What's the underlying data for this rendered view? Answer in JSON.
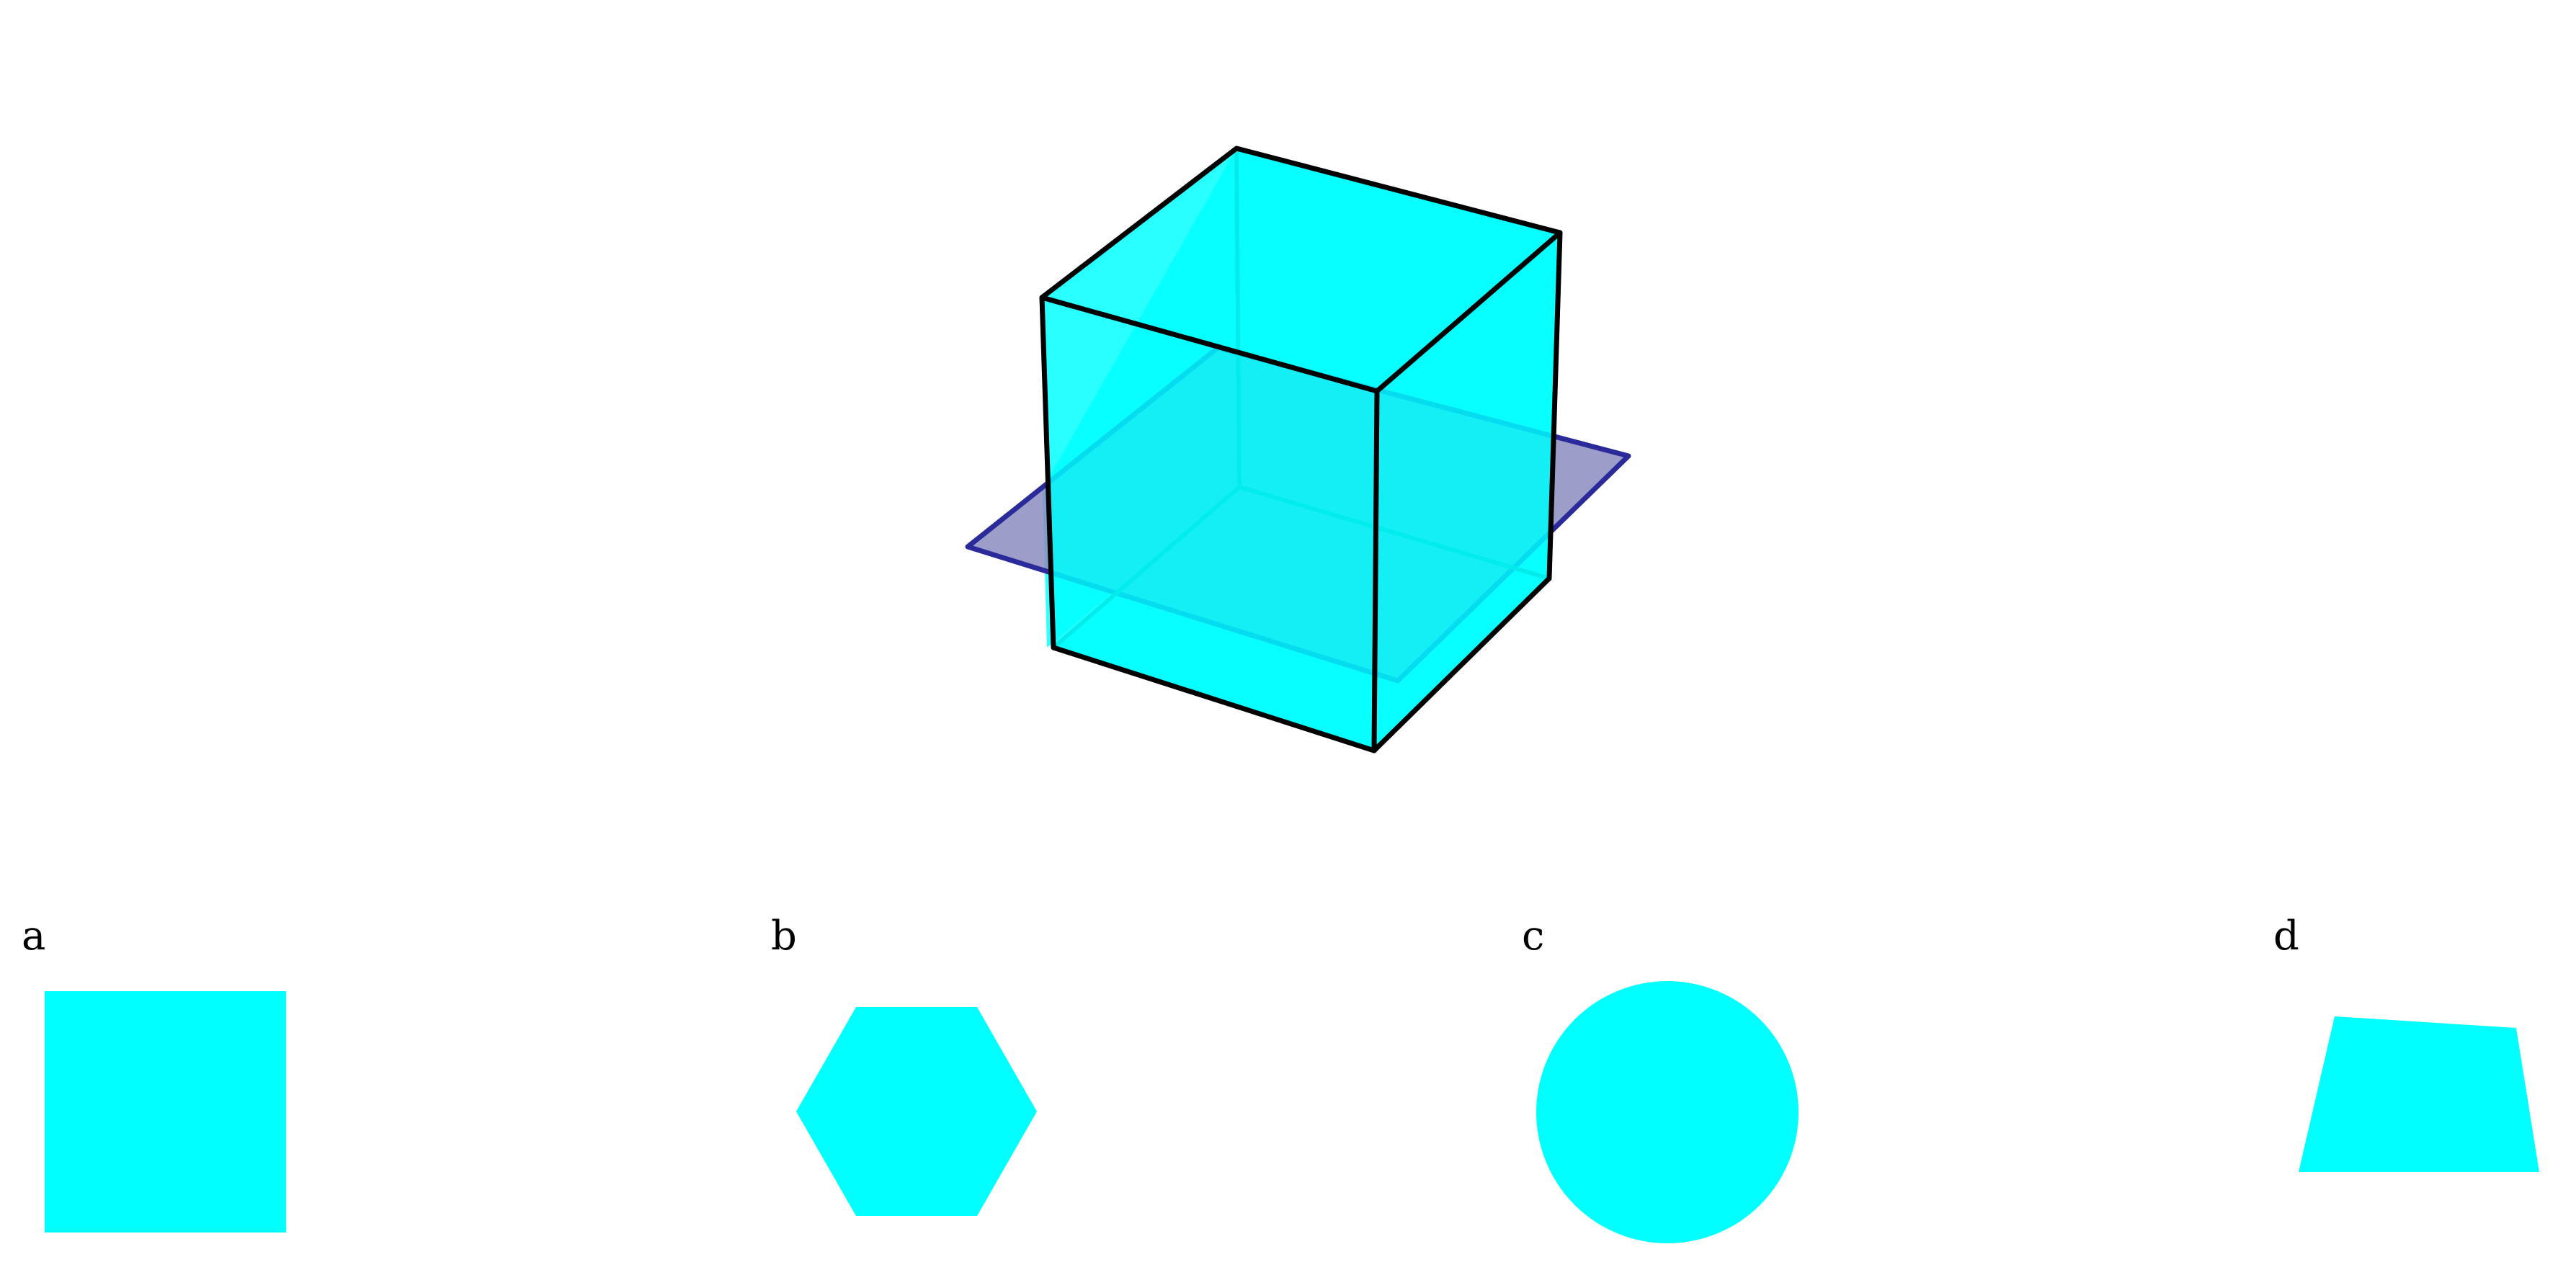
{
  "diagram": {
    "cube": {
      "face_color": "#00FFFF",
      "edge_color": "#000000"
    },
    "cutting_plane": {
      "fill_color": "#8C8CC0",
      "edge_color": "#2A2A9A"
    }
  },
  "options": [
    {
      "label": "a",
      "shape": "square",
      "color": "#00FFFF"
    },
    {
      "label": "b",
      "shape": "hexagon",
      "color": "#00FFFF"
    },
    {
      "label": "c",
      "shape": "circle",
      "color": "#00FFFF"
    },
    {
      "label": "d",
      "shape": "quadrilateral",
      "color": "#00FFFF"
    }
  ]
}
